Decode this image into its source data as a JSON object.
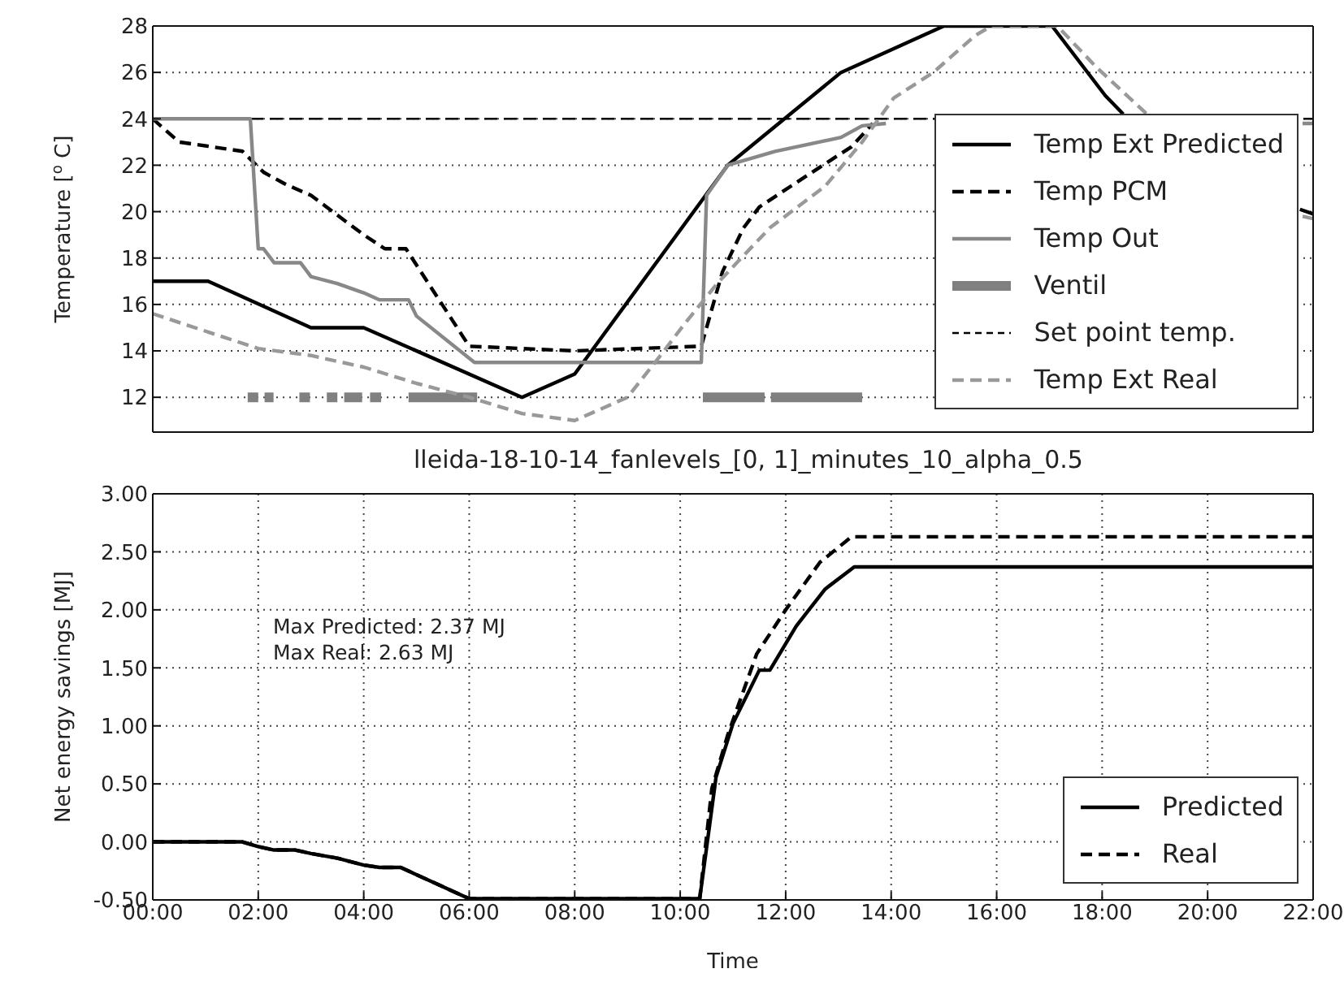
{
  "chart_data": [
    {
      "type": "line",
      "ylabel": "Temperature [$^{o}$ C]",
      "xlim": [
        0,
        22
      ],
      "ylim": [
        10.5,
        28
      ],
      "xticks": [
        {
          "value": 0,
          "label": null
        },
        {
          "value": 2,
          "label": null
        },
        {
          "value": 4,
          "label": null
        },
        {
          "value": 6,
          "label": null
        },
        {
          "value": 8,
          "label": null
        },
        {
          "value": 10,
          "label": null
        },
        {
          "value": 12,
          "label": null
        },
        {
          "value": 14,
          "label": null
        },
        {
          "value": 16,
          "label": null
        },
        {
          "value": 18,
          "label": null
        },
        {
          "value": 20,
          "label": null
        },
        {
          "value": 22,
          "label": null
        }
      ],
      "yticks": [
        12,
        14,
        16,
        18,
        20,
        22,
        24,
        26,
        28
      ],
      "tick_labels": "y",
      "grid": true,
      "legend": "right",
      "series": [
        {
          "name": "Temp Ext Predicted",
          "color": "#000000",
          "line_style": "solid",
          "x": [
            0,
            1.05,
            3,
            4,
            7,
            8,
            10.9,
            13.05,
            15,
            17.05,
            18.06,
            18.4,
            20,
            21.75,
            22
          ],
          "values": [
            17,
            17,
            15,
            15,
            12,
            13,
            22,
            26,
            28,
            28,
            25,
            24.2,
            null,
            20.1,
            19.9
          ]
        },
        {
          "name": "Temp PCM",
          "color": "#000000",
          "line_style": "dashed",
          "x": [
            0,
            0.5,
            1.7,
            2.1,
            2.5,
            3,
            4,
            4.4,
            4.8,
            6,
            8,
            10.4,
            10.8,
            11.2,
            11.5,
            12.3,
            13.25,
            13.65
          ],
          "values": [
            24,
            23,
            22.6,
            21.7,
            21.2,
            20.7,
            19,
            18.4,
            18.4,
            14.2,
            14,
            14.2,
            17.4,
            19.3,
            20.2,
            21.4,
            22.8,
            23.8
          ]
        },
        {
          "name": "Temp Out",
          "color": "#888888",
          "line_style": "solid",
          "x": [
            0,
            1.85,
            2,
            2.1,
            2.3,
            2.8,
            3,
            3.5,
            4,
            4.3,
            4.85,
            5,
            6.1,
            10.4,
            10.5,
            10.9,
            11.8,
            13.05,
            13.45,
            13.9,
            18,
            21.8,
            22
          ],
          "values": [
            24,
            24,
            18.4,
            18.4,
            17.8,
            17.8,
            17.2,
            16.9,
            16.5,
            16.2,
            16.2,
            15.5,
            13.5,
            13.5,
            20.7,
            22,
            22.6,
            23.2,
            23.7,
            23.8,
            null,
            23.8,
            23.8
          ]
        },
        {
          "name": "Ventil",
          "type": "step",
          "color": "#808080",
          "x": [
            1.8,
            2,
            2.05,
            2.12,
            2.29,
            2.5,
            2.78,
            2.98,
            3.1,
            3.3,
            3.5,
            3.55,
            3.63,
            3.97,
            4.05,
            4.12,
            4.33,
            4.5,
            4.85,
            6.15,
            8,
            10.43,
            11.6,
            11.65,
            11.72,
            13.45
          ],
          "values": [
            12,
            12,
            null,
            12,
            12,
            null,
            12,
            12,
            null,
            12,
            12,
            null,
            12,
            12,
            null,
            12,
            12,
            null,
            12,
            12,
            null,
            12,
            12,
            null,
            12,
            12
          ]
        },
        {
          "name": "Temp Ext Real",
          "color": "#999999",
          "line_style": "dashed",
          "x": [
            0,
            2,
            3,
            4,
            5,
            6,
            7,
            8,
            9,
            9.66,
            10.06,
            10.7,
            11.7,
            12.75,
            13.45,
            14.05,
            14.8,
            15.6,
            15.9,
            17.15,
            17.9,
            18.9,
            20,
            21.8,
            22
          ],
          "values": [
            15.6,
            14.1,
            13.8,
            13.3,
            12.6,
            12,
            11.3,
            11,
            12,
            13.9,
            15.1,
            16.9,
            19.3,
            21.1,
            23,
            24.9,
            26,
            27.6,
            28,
            28,
            26.2,
            24.1,
            null,
            19.8,
            19.7
          ]
        }
      ],
      "ref_lines": [
        {
          "axis": "y",
          "value": 24,
          "label": "Set point temp.",
          "color": "#000000",
          "line_style": "dashed"
        }
      ]
    },
    {
      "type": "line",
      "title": "lleida-18-10-14_fanlevels_[0, 1]_minutes_10_alpha_0.5",
      "xlabel": "Time",
      "ylabel": "Net energy savings [MJ]",
      "xlim": [
        0,
        22
      ],
      "ylim": [
        -0.5,
        3
      ],
      "xticks": [
        {
          "value": 0,
          "label": "00:00"
        },
        {
          "value": 2,
          "label": "02:00"
        },
        {
          "value": 4,
          "label": "04:00"
        },
        {
          "value": 6,
          "label": "06:00"
        },
        {
          "value": 8,
          "label": "08:00"
        },
        {
          "value": 10,
          "label": "10:00"
        },
        {
          "value": 12,
          "label": "12:00"
        },
        {
          "value": 14,
          "label": "14:00"
        },
        {
          "value": 16,
          "label": "16:00"
        },
        {
          "value": 18,
          "label": "18:00"
        },
        {
          "value": 20,
          "label": "20:00"
        },
        {
          "value": 22,
          "label": "22:00"
        }
      ],
      "yticks": [
        {
          "value": -0.5,
          "label": "-0.50"
        },
        {
          "value": 0,
          "label": "0.00"
        },
        {
          "value": 0.5,
          "label": "0.50"
        },
        {
          "value": 1,
          "label": "1.00"
        },
        {
          "value": 1.5,
          "label": "1.50"
        },
        {
          "value": 2,
          "label": "2.00"
        },
        {
          "value": 2.5,
          "label": "2.50"
        },
        {
          "value": 3,
          "label": "3.00"
        }
      ],
      "grid": true,
      "legend": "bottom right",
      "annotations": [
        "Max Predicted: 2.37 MJ",
        "Max Real: 2.63 MJ"
      ],
      "series": [
        {
          "name": "Predicted",
          "color": "#000000",
          "line_style": "solid",
          "x": [
            0,
            1.7,
            2,
            2.3,
            2.7,
            3,
            3.5,
            4,
            4.3,
            4.7,
            6,
            10.37,
            10.68,
            11,
            11.5,
            11.7,
            12.2,
            12.75,
            13.3,
            22
          ],
          "values": [
            0,
            0,
            -0.04,
            -0.07,
            -0.07,
            -0.1,
            -0.14,
            -0.2,
            -0.22,
            -0.22,
            -0.49,
            -0.49,
            0.56,
            1.02,
            1.48,
            1.48,
            1.86,
            2.18,
            2.37,
            2.37
          ]
        },
        {
          "name": "Real",
          "color": "#000000",
          "line_style": "dashed",
          "x": [
            0,
            1.7,
            2,
            2.3,
            2.7,
            3,
            3.5,
            4,
            4.3,
            4.7,
            6,
            10.37,
            10.6,
            10.9,
            11.45,
            12,
            12.65,
            13.25,
            22
          ],
          "values": [
            0,
            0,
            -0.04,
            -0.07,
            -0.07,
            -0.1,
            -0.14,
            -0.2,
            -0.22,
            -0.22,
            -0.49,
            -0.49,
            0.46,
            0.92,
            1.62,
            2,
            2.41,
            2.63,
            2.63
          ]
        }
      ]
    }
  ]
}
